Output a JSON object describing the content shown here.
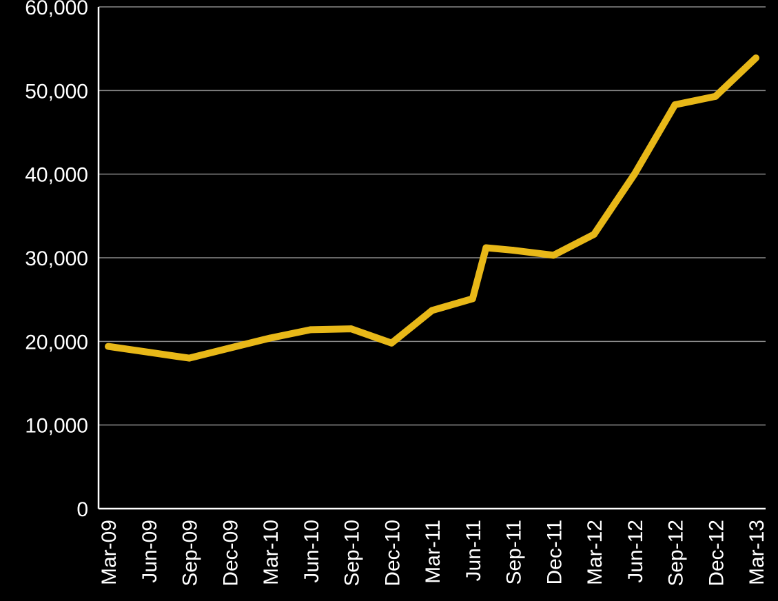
{
  "chart_data": {
    "type": "line",
    "title": "",
    "xlabel": "",
    "ylabel": "",
    "ylim": [
      0,
      60000
    ],
    "y_ticks": [
      0,
      10000,
      20000,
      30000,
      40000,
      50000,
      60000
    ],
    "y_tick_labels": [
      "0",
      "10,000",
      "20,000",
      "30,000",
      "40,000",
      "50,000",
      "60,000"
    ],
    "x_tick_labels": [
      "Mar-09",
      "Jun-09",
      "Sep-09",
      "Dec-09",
      "Mar-10",
      "Jun-10",
      "Sep-10",
      "Dec-10",
      "Mar-11",
      "Jun-11",
      "Sep-11",
      "Dec-11",
      "Mar-12",
      "Jun-12",
      "Sep-12",
      "Dec-12",
      "Mar-13"
    ],
    "grid": true,
    "series": [
      {
        "color": "#e8b818",
        "x": [
          "Mar-09",
          "Jun-09",
          "Sep-09",
          "Dec-09",
          "Mar-10",
          "Jun-10",
          "Sep-10",
          "Dec-10",
          "Mar-11",
          "Jun-11",
          "Jul-11",
          "Sep-11",
          "Dec-11",
          "Mar-12",
          "Jun-12",
          "Sep-12",
          "Dec-12",
          "Mar-13"
        ],
        "values": [
          19400,
          18700,
          18000,
          19200,
          20400,
          21400,
          21500,
          19800,
          23700,
          25100,
          31200,
          30900,
          30300,
          32800,
          40000,
          48300,
          49300,
          53900
        ]
      }
    ],
    "colors": {
      "background": "#000000",
      "text": "#ffffff",
      "axis": "#ffffff",
      "grid": "#8a8a8a",
      "line": "#e8b818"
    }
  }
}
